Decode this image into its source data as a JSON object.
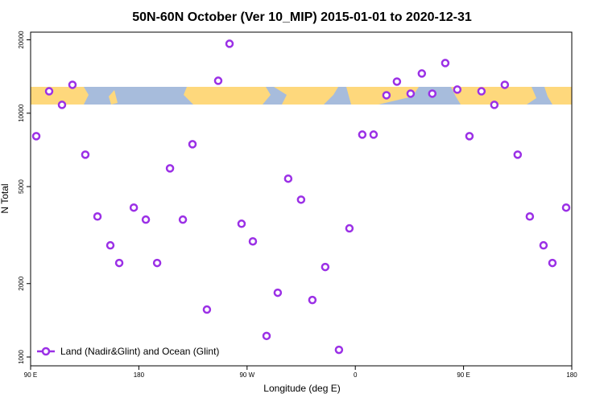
{
  "chart_data": {
    "type": "scatter",
    "title": "50N-60N October (Ver 10_MIP)   2015-01-01 to 2020-12-31",
    "x_label": "Longitude (deg E)",
    "y_label": "N Total",
    "log_y": true,
    "legend": "bottom-left",
    "xlim": [
      90,
      540
    ],
    "ylim": [
      920,
      21500
    ],
    "xticks": [
      {
        "value": 90,
        "label": "90 E"
      },
      {
        "value": 180,
        "label": "180"
      },
      {
        "value": 270,
        "label": "90 W"
      },
      {
        "value": 360,
        "label": "0"
      },
      {
        "value": 450,
        "label": "90 E"
      },
      {
        "value": 540,
        "label": "180"
      }
    ],
    "yticks": [
      1000,
      2000,
      5000,
      10000,
      20000
    ],
    "series": [
      {
        "name": "Land (Nadir&Glint) and Ocean (Glint)",
        "color": "#9b30e6",
        "x": [
          94.7,
          105.4,
          116.1,
          124.8,
          135.5,
          145.6,
          156.3,
          163.7,
          175.8,
          185.8,
          195.2,
          205.9,
          216.6,
          224.6,
          236.6,
          246.0,
          255.4,
          265.4,
          274.8,
          286.2,
          295.5,
          304.2,
          314.9,
          324.3,
          335.0,
          346.4,
          355.1,
          365.8,
          375.2,
          385.9,
          394.6,
          406.0,
          415.3,
          424.0,
          434.8,
          444.8,
          454.9,
          464.9,
          475.6,
          484.3,
          495.0,
          505.1,
          516.5,
          523.9,
          535.3
        ],
        "values": [
          8050,
          12300,
          10820,
          13080,
          6760,
          3770,
          2870,
          2430,
          4100,
          3660,
          2430,
          5940,
          3660,
          7460,
          1565,
          13590,
          19270,
          3520,
          2980,
          1220,
          1835,
          5390,
          4420,
          1713,
          2340,
          1070,
          3370,
          8170,
          8170,
          11850,
          13480,
          12030,
          14550,
          12030,
          16060,
          12500,
          8050,
          12300,
          10820,
          13080,
          6760,
          3770,
          2870,
          2430,
          4100
        ]
      }
    ]
  }
}
